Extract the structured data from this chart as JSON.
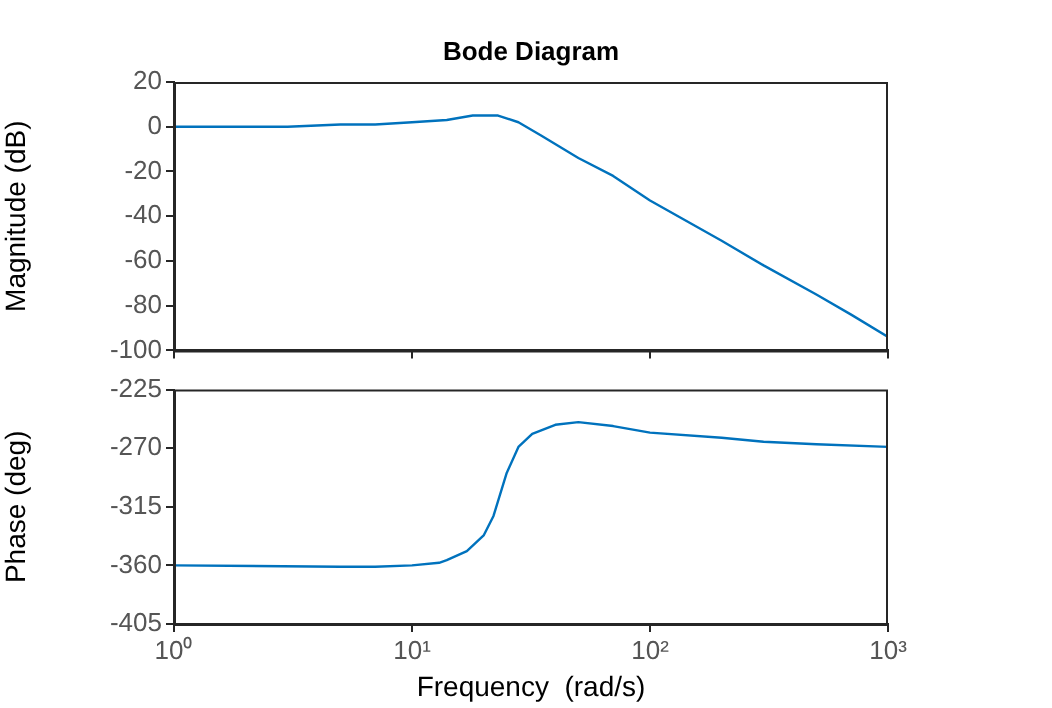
{
  "chart_data": [
    {
      "type": "line",
      "title": "Bode Diagram",
      "ylabel": "Magnitude (dB)",
      "series": [
        {
          "color": "#0072bd",
          "x": [
            1,
            2,
            3,
            5,
            7,
            10,
            14,
            18,
            23,
            28,
            35,
            50,
            70,
            100,
            200,
            300,
            500,
            700,
            1000
          ],
          "values": [
            0,
            0,
            0,
            1,
            1,
            2,
            3,
            5,
            5,
            2,
            -4,
            -14,
            -22,
            -33,
            -51,
            -62,
            -75,
            -84,
            -94
          ]
        }
      ],
      "log": "x",
      "xlim": [
        1,
        1000
      ],
      "xticks": [
        {
          "value": 1,
          "label": null
        },
        {
          "value": 10,
          "label": null
        },
        {
          "value": 100,
          "label": null
        },
        {
          "value": 1000,
          "label": null
        }
      ],
      "ylim": [
        -100,
        20
      ],
      "yticks": [
        -100,
        -80,
        -60,
        -40,
        -20,
        0,
        20
      ],
      "tick_labels": "y",
      "grid": false,
      "legend": false,
      "marker": "none",
      "line_style": "solid"
    },
    {
      "type": "line",
      "xlabel": "Frequency  (rad/s)",
      "ylabel": "Phase (deg)",
      "series": [
        {
          "color": "#0072bd",
          "x": [
            1,
            5,
            7,
            10,
            13,
            14,
            17,
            20,
            22,
            25,
            28,
            32,
            40,
            50,
            70,
            100,
            200,
            300,
            500,
            1000
          ],
          "values": [
            -360,
            -361,
            -361,
            -360,
            -358,
            -356,
            -349,
            -337,
            -322,
            -289,
            -269,
            -259,
            -252,
            -250,
            -253,
            -258,
            -262,
            -265,
            -267,
            -269
          ]
        }
      ],
      "log": "x",
      "xlim": [
        1,
        1000
      ],
      "xticks": [
        {
          "value": 1,
          "label": "10⁰"
        },
        {
          "value": 10,
          "label": "10¹"
        },
        {
          "value": 100,
          "label": "10²"
        },
        {
          "value": 1000,
          "label": "10³"
        }
      ],
      "ylim": [
        -405,
        -225
      ],
      "yticks": [
        -405,
        -360,
        -315,
        -270,
        -225
      ],
      "grid": false,
      "legend": false,
      "marker": "none",
      "line_style": "solid"
    }
  ]
}
